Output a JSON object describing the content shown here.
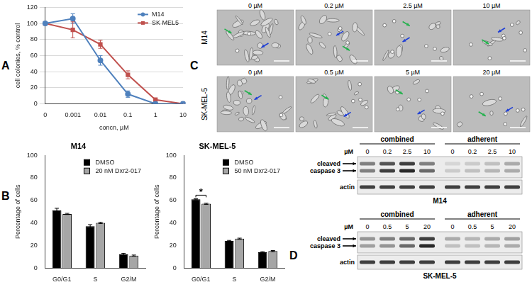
{
  "panel_labels": [
    "A",
    "B",
    "C",
    "D"
  ],
  "chart_data": [
    {
      "type": "line",
      "categories": [
        "0",
        "0.001",
        "0.01",
        "0.1",
        "1",
        "10"
      ],
      "x_label": "concn, µM",
      "y_label": "cell colonies, % control",
      "ylim": [
        0,
        120
      ],
      "yticks": [
        0,
        20,
        40,
        60,
        80,
        100,
        120
      ],
      "grid": true,
      "legend": "top-right",
      "series": [
        {
          "name": "M14",
          "color": "#4f81bd",
          "marker": "circle",
          "values": [
            100,
            106,
            54,
            12,
            0,
            0
          ],
          "errors": [
            0,
            6,
            6,
            4,
            0,
            0
          ]
        },
        {
          "name": "SK MEL5",
          "color": "#c0504d",
          "marker": "square",
          "values": [
            100,
            92,
            74,
            36,
            5,
            0
          ],
          "errors": [
            0,
            10,
            5,
            5,
            1,
            0
          ]
        }
      ]
    },
    {
      "type": "bar",
      "title": "M14",
      "categories": [
        "G0/G1",
        "S",
        "G2/M"
      ],
      "y_label": "Percentage of cells",
      "ylim": [
        0,
        100
      ],
      "yticks": [
        0,
        20,
        40,
        60,
        80,
        100
      ],
      "grid": false,
      "legend": "top-right",
      "series": [
        {
          "name": "DMSO",
          "color": "#000000",
          "values": [
            51,
            37,
            12
          ],
          "errors": [
            2,
            1.5,
            1
          ]
        },
        {
          "name": "20 nM Dxr2-017",
          "color": "#a6a6a6",
          "values": [
            48,
            40,
            11
          ],
          "errors": [
            0.5,
            0.5,
            0.5
          ]
        }
      ]
    },
    {
      "type": "bar",
      "title": "SK-MEL-5",
      "categories": [
        "G0/G1",
        "S",
        "G2/M"
      ],
      "y_label": "Percentage of cells",
      "ylim": [
        0,
        100
      ],
      "yticks": [
        0,
        20,
        40,
        60,
        80,
        100
      ],
      "grid": false,
      "legend": "top-right",
      "series": [
        {
          "name": "DMSO",
          "color": "#000000",
          "values": [
            61,
            24,
            14
          ],
          "errors": [
            0.5,
            0.5,
            0.5
          ]
        },
        {
          "name": "50 nM Dxr2-017",
          "color": "#a6a6a6",
          "values": [
            57,
            26,
            15
          ],
          "errors": [
            0.5,
            0.5,
            0.5
          ]
        }
      ],
      "annotations": [
        {
          "text": "*",
          "category": "G0/G1"
        }
      ]
    }
  ],
  "micrographs": {
    "rows": [
      {
        "label": "M14",
        "columns": [
          "0 µM",
          "0.2 µM",
          "2.5 µM",
          "10 µM"
        ]
      },
      {
        "label": "SK-MEL-5",
        "columns": [
          "0 µM",
          "0.5 µM",
          "5 µM",
          "20 µM"
        ]
      }
    ]
  },
  "blots": [
    {
      "cell_line": "M14",
      "unit": "µM",
      "groups": [
        {
          "label": "combined",
          "lanes": [
            0,
            0.2,
            2.5,
            10
          ]
        },
        {
          "label": "adherent",
          "lanes": [
            0,
            0.2,
            2.5,
            10
          ]
        }
      ],
      "rows": [
        {
          "label": "cleaved caspase 3",
          "bands": [
            [
              0.5,
              0.7,
              0.8,
              0.5,
              0.1,
              0.15,
              0.2,
              0.3
            ],
            [
              0.5,
              0.8,
              0.9,
              0.6,
              0.15,
              0.2,
              0.25,
              0.3
            ]
          ]
        },
        {
          "label": "actin",
          "bands": [
            [
              0.8,
              0.8,
              0.8,
              0.8,
              0.8,
              0.8,
              0.8,
              0.8
            ]
          ]
        }
      ]
    },
    {
      "cell_line": "SK-MEL-5",
      "unit": "µM",
      "groups": [
        {
          "label": "combined",
          "lanes": [
            0,
            0.5,
            5,
            20
          ]
        },
        {
          "label": "adherent",
          "lanes": [
            0,
            0.5,
            5,
            20
          ]
        }
      ],
      "rows": [
        {
          "label": "cleaved caspase 3",
          "bands": [
            [
              0.4,
              0.5,
              0.6,
              0.8,
              0.3,
              0.25,
              0.3,
              0.35
            ],
            [
              0.35,
              0.4,
              0.6,
              0.9,
              0.2,
              0.2,
              0.25,
              0.3
            ]
          ]
        },
        {
          "label": "actin",
          "bands": [
            [
              0.8,
              0.8,
              0.8,
              0.8,
              0.8,
              0.8,
              0.8,
              0.8
            ]
          ]
        }
      ]
    }
  ]
}
